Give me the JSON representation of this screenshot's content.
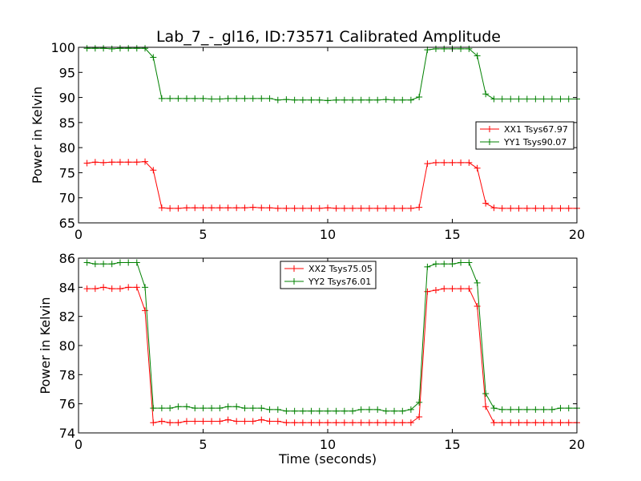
{
  "title": "Lab_7_-_gl16, ID:73571 Calibrated Amplitude",
  "chart_data": [
    {
      "type": "line",
      "xlabel": "",
      "ylabel": "Power in Kelvin",
      "xlim": [
        0,
        20
      ],
      "ylim": [
        65,
        100
      ],
      "xticks": [
        0,
        5,
        10,
        15,
        20
      ],
      "yticks": [
        65,
        70,
        75,
        80,
        85,
        90,
        95,
        100
      ],
      "legend_position": "right",
      "series": [
        {
          "name": "XX1 Tsys67.97",
          "color": "#ff0000",
          "x": [
            0.34,
            0.67,
            1.0,
            1.34,
            1.67,
            2.0,
            2.34,
            2.67,
            3.0,
            3.34,
            3.67,
            4.0,
            4.34,
            4.67,
            5.0,
            5.34,
            5.67,
            6.0,
            6.34,
            6.67,
            7.0,
            7.34,
            7.67,
            8.0,
            8.34,
            8.67,
            9.0,
            9.34,
            9.67,
            10.0,
            10.34,
            10.67,
            11.0,
            11.34,
            11.67,
            12.0,
            12.34,
            12.67,
            13.0,
            13.34,
            13.67,
            14.0,
            14.34,
            14.67,
            15.0,
            15.34,
            15.67,
            16.0,
            16.34,
            16.67,
            17.0,
            17.34,
            17.67,
            18.0,
            18.34,
            18.67,
            19.0,
            19.34,
            19.67,
            20.0
          ],
          "values": [
            76.9,
            77.1,
            77.0,
            77.1,
            77.1,
            77.1,
            77.1,
            77.2,
            75.5,
            68.0,
            67.9,
            67.9,
            68.0,
            68.0,
            68.0,
            68.0,
            68.0,
            68.0,
            68.0,
            68.0,
            68.1,
            68.0,
            68.0,
            67.9,
            67.9,
            67.9,
            67.9,
            67.9,
            67.9,
            68.0,
            67.9,
            67.9,
            67.9,
            67.9,
            67.9,
            67.9,
            67.9,
            67.9,
            67.9,
            67.9,
            68.1,
            76.8,
            77.0,
            77.0,
            77.0,
            77.0,
            77.0,
            75.9,
            68.9,
            68.0,
            67.9,
            67.9,
            67.9,
            67.9,
            67.9,
            67.9,
            67.9,
            67.9,
            67.9,
            67.9
          ]
        },
        {
          "name": "YY1 Tsys90.07",
          "color": "#008000",
          "x": [
            0.34,
            0.67,
            1.0,
            1.34,
            1.67,
            2.0,
            2.34,
            2.67,
            3.0,
            3.34,
            3.67,
            4.0,
            4.34,
            4.67,
            5.0,
            5.34,
            5.67,
            6.0,
            6.34,
            6.67,
            7.0,
            7.34,
            7.67,
            8.0,
            8.34,
            8.67,
            9.0,
            9.34,
            9.67,
            10.0,
            10.34,
            10.67,
            11.0,
            11.34,
            11.67,
            12.0,
            12.34,
            12.67,
            13.0,
            13.34,
            13.67,
            14.0,
            14.34,
            14.67,
            15.0,
            15.34,
            15.67,
            16.0,
            16.34,
            16.67,
            17.0,
            17.34,
            17.67,
            18.0,
            18.34,
            18.67,
            19.0,
            19.34,
            19.67,
            20.0
          ],
          "values": [
            99.8,
            99.8,
            99.8,
            99.7,
            99.8,
            99.8,
            99.8,
            99.8,
            98.0,
            89.8,
            89.8,
            89.8,
            89.8,
            89.8,
            89.8,
            89.7,
            89.7,
            89.8,
            89.8,
            89.8,
            89.8,
            89.8,
            89.8,
            89.5,
            89.6,
            89.5,
            89.5,
            89.5,
            89.5,
            89.4,
            89.5,
            89.5,
            89.5,
            89.5,
            89.5,
            89.5,
            89.6,
            89.5,
            89.5,
            89.5,
            90.1,
            99.5,
            99.7,
            99.7,
            99.7,
            99.7,
            99.7,
            98.3,
            90.7,
            89.7,
            89.7,
            89.7,
            89.7,
            89.7,
            89.7,
            89.7,
            89.7,
            89.7,
            89.7,
            89.7
          ]
        }
      ]
    },
    {
      "type": "line",
      "xlabel": "Time (seconds)",
      "ylabel": "Power in Kelvin",
      "xlim": [
        0,
        20
      ],
      "ylim": [
        74,
        86
      ],
      "xticks": [
        0,
        5,
        10,
        15,
        20
      ],
      "yticks": [
        74,
        76,
        78,
        80,
        82,
        84,
        86
      ],
      "legend_position": "top-center",
      "series": [
        {
          "name": "XX2 Tsys75.05",
          "color": "#ff0000",
          "x": [
            0.34,
            0.67,
            1.0,
            1.34,
            1.67,
            2.0,
            2.34,
            2.67,
            3.0,
            3.34,
            3.67,
            4.0,
            4.34,
            4.67,
            5.0,
            5.34,
            5.67,
            6.0,
            6.34,
            6.67,
            7.0,
            7.34,
            7.67,
            8.0,
            8.34,
            8.67,
            9.0,
            9.34,
            9.67,
            10.0,
            10.34,
            10.67,
            11.0,
            11.34,
            11.67,
            12.0,
            12.34,
            12.67,
            13.0,
            13.34,
            13.67,
            14.0,
            14.34,
            14.67,
            15.0,
            15.34,
            15.67,
            16.0,
            16.34,
            16.67,
            17.0,
            17.34,
            17.67,
            18.0,
            18.34,
            18.67,
            19.0,
            19.34,
            19.67,
            20.0
          ],
          "values": [
            83.9,
            83.9,
            84.0,
            83.9,
            83.9,
            84.0,
            84.0,
            82.4,
            74.7,
            74.8,
            74.7,
            74.7,
            74.8,
            74.8,
            74.8,
            74.8,
            74.8,
            74.9,
            74.8,
            74.8,
            74.8,
            74.9,
            74.8,
            74.8,
            74.7,
            74.7,
            74.7,
            74.7,
            74.7,
            74.7,
            74.7,
            74.7,
            74.7,
            74.7,
            74.7,
            74.7,
            74.7,
            74.7,
            74.7,
            74.7,
            75.1,
            83.7,
            83.8,
            83.9,
            83.9,
            83.9,
            83.9,
            82.7,
            75.8,
            74.7,
            74.7,
            74.7,
            74.7,
            74.7,
            74.7,
            74.7,
            74.7,
            74.7,
            74.7,
            74.7
          ]
        },
        {
          "name": "YY2 Tsys76.01",
          "color": "#008000",
          "x": [
            0.34,
            0.67,
            1.0,
            1.34,
            1.67,
            2.0,
            2.34,
            2.67,
            3.0,
            3.34,
            3.67,
            4.0,
            4.34,
            4.67,
            5.0,
            5.34,
            5.67,
            6.0,
            6.34,
            6.67,
            7.0,
            7.34,
            7.67,
            8.0,
            8.34,
            8.67,
            9.0,
            9.34,
            9.67,
            10.0,
            10.34,
            10.67,
            11.0,
            11.34,
            11.67,
            12.0,
            12.34,
            12.67,
            13.0,
            13.34,
            13.67,
            14.0,
            14.34,
            14.67,
            15.0,
            15.34,
            15.67,
            16.0,
            16.34,
            16.67,
            17.0,
            17.34,
            17.67,
            18.0,
            18.34,
            18.67,
            19.0,
            19.34,
            19.67,
            20.0
          ],
          "values": [
            85.7,
            85.6,
            85.6,
            85.6,
            85.7,
            85.7,
            85.7,
            84.0,
            75.7,
            75.7,
            75.7,
            75.8,
            75.8,
            75.7,
            75.7,
            75.7,
            75.7,
            75.8,
            75.8,
            75.7,
            75.7,
            75.7,
            75.6,
            75.6,
            75.5,
            75.5,
            75.5,
            75.5,
            75.5,
            75.5,
            75.5,
            75.5,
            75.5,
            75.6,
            75.6,
            75.6,
            75.5,
            75.5,
            75.5,
            75.6,
            76.1,
            85.4,
            85.6,
            85.6,
            85.6,
            85.7,
            85.7,
            84.3,
            76.7,
            75.7,
            75.6,
            75.6,
            75.6,
            75.6,
            75.6,
            75.6,
            75.6,
            75.7,
            75.7,
            75.7
          ]
        }
      ]
    }
  ]
}
